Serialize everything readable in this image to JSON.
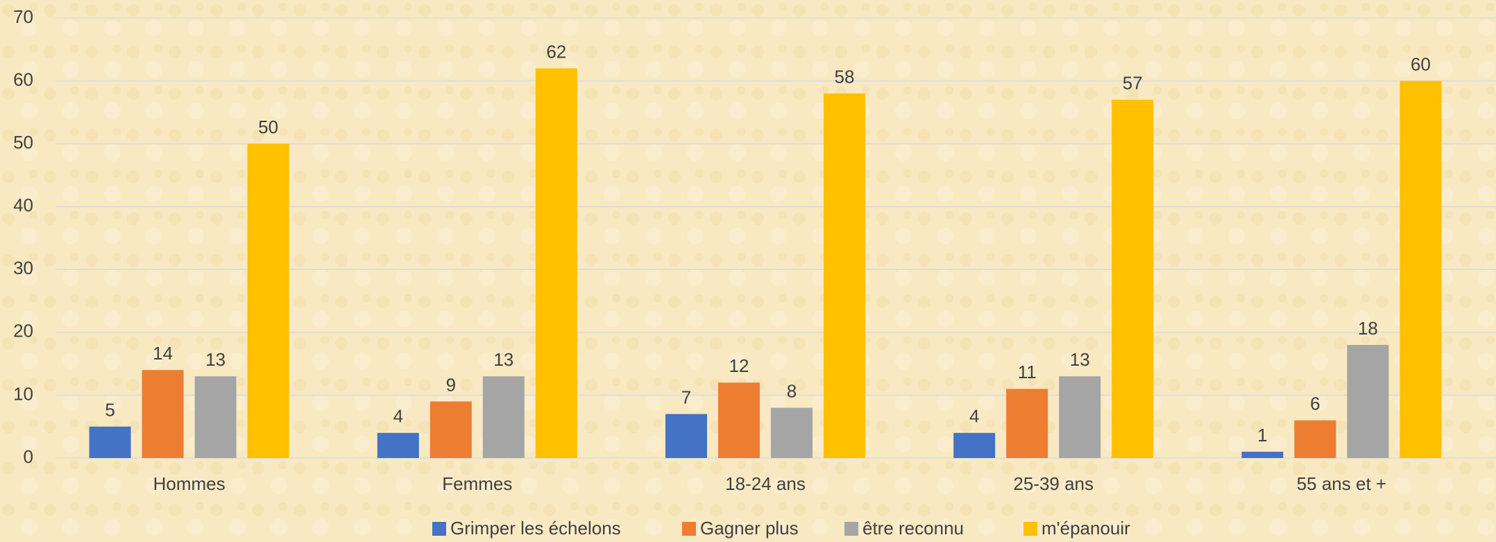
{
  "chart_data": {
    "type": "bar",
    "categories": [
      "Hommes",
      "Femmes",
      "18-24 ans",
      "25-39 ans",
      "55 ans et +"
    ],
    "series": [
      {
        "name": "Grimper les échelons",
        "color": "#4472c4",
        "values": [
          5,
          4,
          7,
          4,
          1
        ]
      },
      {
        "name": "Gagner plus",
        "color": "#ed7d31",
        "values": [
          14,
          9,
          12,
          11,
          6
        ]
      },
      {
        "name": "être reconnu",
        "color": "#a5a5a5",
        "values": [
          13,
          13,
          8,
          13,
          18
        ]
      },
      {
        "name": "m'épanouir",
        "color": "#ffc000",
        "values": [
          50,
          62,
          58,
          57,
          60
        ]
      }
    ],
    "ylim": [
      0,
      70
    ],
    "yticks": [
      0,
      10,
      20,
      30,
      40,
      50,
      60,
      70
    ],
    "grid": true,
    "legend": "bottom"
  }
}
